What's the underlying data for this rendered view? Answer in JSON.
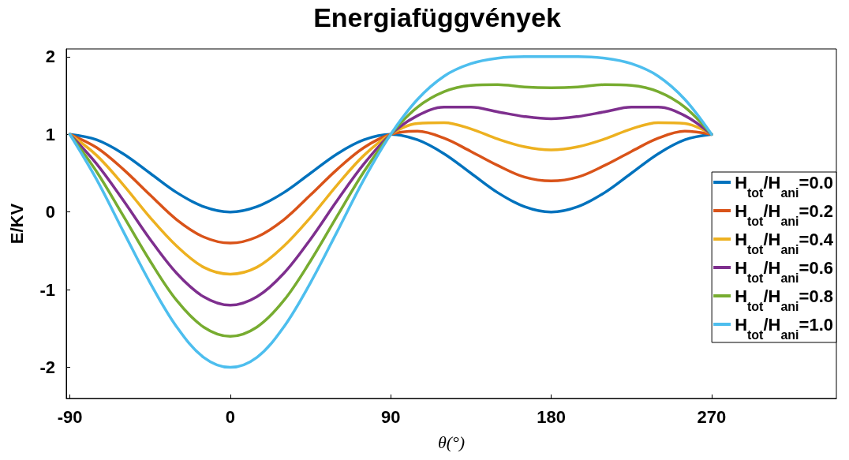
{
  "chart_data": {
    "type": "line",
    "title": "Energiafüggvények",
    "xlabel": "θ(°)",
    "ylabel": "E/KV",
    "x": [
      -90,
      -75,
      -60,
      -45,
      -30,
      -15,
      0,
      15,
      30,
      45,
      60,
      75,
      90,
      105,
      120,
      135,
      150,
      165,
      180,
      195,
      210,
      225,
      240,
      255,
      270
    ],
    "series": [
      {
        "name": "H$_{tot}$/H$_{ani}$=0.0",
        "color": "#0072bd",
        "values": [
          1,
          0.93,
          0.75,
          0.5,
          0.25,
          0.07,
          0,
          0.07,
          0.25,
          0.5,
          0.75,
          0.93,
          1,
          0.93,
          0.75,
          0.5,
          0.25,
          0.07,
          0,
          0.07,
          0.25,
          0.5,
          0.75,
          0.93,
          1
        ]
      },
      {
        "name": "H$_{tot}$/H$_{ani}$=0.2",
        "color": "#d95319",
        "values": [
          1,
          0.83,
          0.55,
          0.22,
          -0.1,
          -0.32,
          -0.4,
          -0.32,
          -0.1,
          0.22,
          0.55,
          0.83,
          1,
          1.04,
          0.95,
          0.78,
          0.6,
          0.45,
          0.4,
          0.45,
          0.6,
          0.78,
          0.95,
          1.04,
          1
        ]
      },
      {
        "name": "H$_{tot}$/H$_{ani}$=0.4",
        "color": "#edb120",
        "values": [
          1,
          0.73,
          0.35,
          -0.07,
          -0.44,
          -0.71,
          -0.8,
          -0.71,
          -0.44,
          -0.07,
          0.35,
          0.73,
          1,
          1.14,
          1.15,
          1.07,
          0.94,
          0.84,
          0.8,
          0.84,
          0.94,
          1.07,
          1.15,
          1.14,
          1
        ]
      },
      {
        "name": "H$_{tot}$/H$_{ani}$=0.6",
        "color": "#7e2f8e",
        "values": [
          1,
          0.62,
          0.15,
          -0.35,
          -0.79,
          -1.09,
          -1.2,
          -1.09,
          -0.79,
          -0.35,
          0.15,
          0.62,
          1,
          1.24,
          1.35,
          1.35,
          1.29,
          1.23,
          1.2,
          1.23,
          1.29,
          1.35,
          1.35,
          1.24,
          1
        ]
      },
      {
        "name": "H$_{tot}$/H$_{ani}$=0.8",
        "color": "#77ac30",
        "values": [
          1,
          0.52,
          -0.05,
          -0.63,
          -1.14,
          -1.48,
          -1.6,
          -1.48,
          -1.14,
          -0.63,
          -0.05,
          0.52,
          1,
          1.35,
          1.55,
          1.63,
          1.64,
          1.61,
          1.6,
          1.61,
          1.64,
          1.63,
          1.55,
          1.35,
          1
        ]
      },
      {
        "name": "H$_{tot}$/H$_{ani}$=1.0",
        "color": "#4dbeee",
        "values": [
          1,
          0.42,
          -0.25,
          -0.91,
          -1.48,
          -1.87,
          -2,
          -1.87,
          -1.48,
          -0.91,
          -0.25,
          0.42,
          1,
          1.45,
          1.75,
          1.91,
          1.98,
          2,
          2,
          2,
          1.98,
          1.91,
          1.75,
          1.45,
          1
        ]
      }
    ],
    "xlim": [
      -92,
      340
    ],
    "xticks": [
      -90,
      0,
      90,
      180,
      270
    ],
    "ylim": [
      -2.4,
      2.1
    ],
    "yticks": [
      -2,
      -1,
      0,
      1,
      2
    ],
    "grid": false,
    "legend": "right",
    "marker": "none",
    "line_style": "solid"
  }
}
